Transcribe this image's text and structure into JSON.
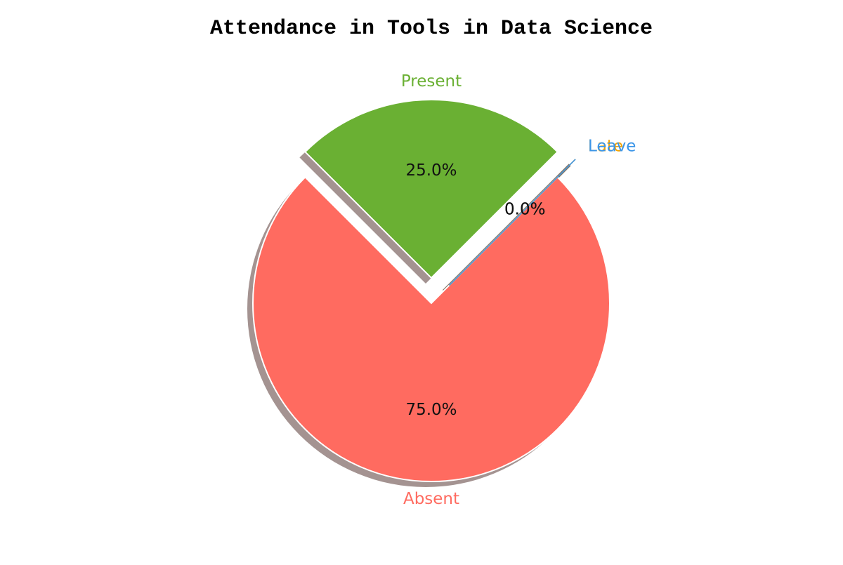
{
  "chart_data": {
    "type": "pie",
    "title": "Attendance in Tools in Data Science",
    "categories": [
      "Present",
      "Absent",
      "Late",
      "Leave"
    ],
    "values": [
      25.0,
      75.0,
      0.0,
      0.0
    ],
    "percent_labels": [
      "25.0%",
      "75.0%",
      "0.0%",
      "0.0%"
    ],
    "colors": [
      "#6ab033",
      "#ff6b60",
      "#f5a300",
      "#3b95e8"
    ],
    "shadow": true,
    "start_angle_deg": 45,
    "exploded": [
      "Present",
      "Late",
      "Leave"
    ]
  }
}
